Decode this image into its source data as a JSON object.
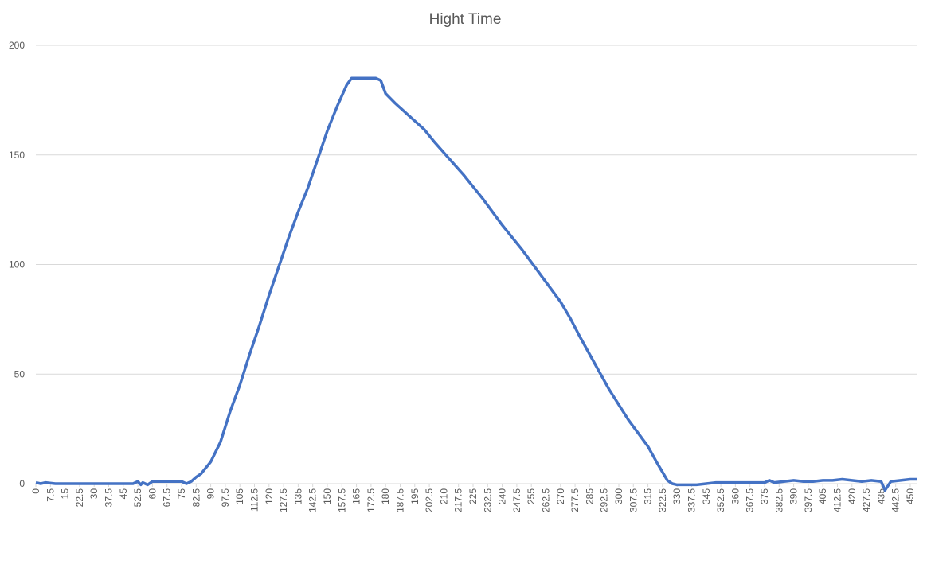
{
  "chart_data": {
    "type": "line",
    "title": "Hight Time",
    "x": [
      0,
      2.5,
      5,
      10,
      15,
      20,
      25,
      30,
      35,
      40,
      45,
      50,
      52.5,
      54,
      55,
      57.5,
      60,
      65,
      70,
      75,
      77.5,
      80,
      82.5,
      85,
      90,
      95,
      100,
      105,
      110,
      115,
      120,
      125,
      130,
      135,
      140,
      145,
      150,
      155,
      160,
      162.5,
      165,
      170,
      175,
      177.5,
      180,
      185,
      190,
      195,
      200,
      205,
      210,
      215,
      220,
      225,
      230,
      235,
      240,
      245,
      250,
      255,
      260,
      265,
      270,
      275,
      280,
      285,
      290,
      295,
      300,
      305,
      310,
      315,
      320,
      325,
      327.5,
      330,
      335,
      340,
      345,
      350,
      355,
      360,
      365,
      370,
      375,
      377.5,
      380,
      385,
      390,
      395,
      400,
      405,
      410,
      415,
      420,
      425,
      430,
      435,
      437,
      440,
      445,
      450,
      453.5
    ],
    "series": [
      {
        "name": "Hight Time",
        "color": "#4472c4",
        "values": [
          0.5,
          0,
          0.5,
          0,
          0,
          0,
          0,
          0,
          0,
          0,
          0,
          0,
          1,
          -0.5,
          0.5,
          -0.5,
          1,
          1,
          1,
          1,
          0,
          1,
          3,
          4.5,
          10,
          19,
          33,
          45,
          59,
          72,
          86,
          99,
          112,
          124,
          135,
          148,
          161,
          172,
          182,
          185,
          185,
          185,
          185,
          184,
          178,
          173.5,
          169.5,
          165.5,
          161.5,
          156,
          151,
          146,
          141,
          135.5,
          130,
          124,
          118,
          112.5,
          107,
          101,
          95,
          89,
          83,
          75.5,
          67,
          59,
          51,
          43,
          36,
          29,
          23,
          17,
          9,
          1.5,
          0,
          -0.5,
          -0.5,
          -0.5,
          0,
          0.5,
          0.5,
          0.5,
          0.5,
          0.5,
          0.5,
          1.5,
          0.5,
          1,
          1.5,
          1,
          1,
          1.5,
          1.5,
          2,
          1.5,
          1,
          1.5,
          1,
          -3,
          1,
          1.5,
          2,
          2
        ]
      }
    ],
    "xlim": [
      0,
      453.7
    ],
    "ylim": [
      0,
      200
    ],
    "xticks": [
      0,
      7.5,
      15,
      22.5,
      30,
      37.5,
      45,
      52.5,
      60,
      67.5,
      75,
      82.5,
      90,
      97.5,
      105,
      112.5,
      120,
      127.5,
      135,
      142.5,
      150,
      157.5,
      165,
      172.5,
      180,
      187.5,
      195,
      202.5,
      210,
      217.5,
      225,
      232.5,
      240,
      247.5,
      255,
      262.5,
      270,
      277.5,
      285,
      292.5,
      300,
      307.5,
      315,
      322.5,
      330,
      337.5,
      345,
      352.5,
      360,
      367.5,
      375,
      382.5,
      390,
      397.5,
      405,
      412.5,
      420,
      427.5,
      435,
      442.5,
      450
    ],
    "yticks": [
      0,
      50,
      100,
      150,
      200
    ],
    "grid": true
  }
}
